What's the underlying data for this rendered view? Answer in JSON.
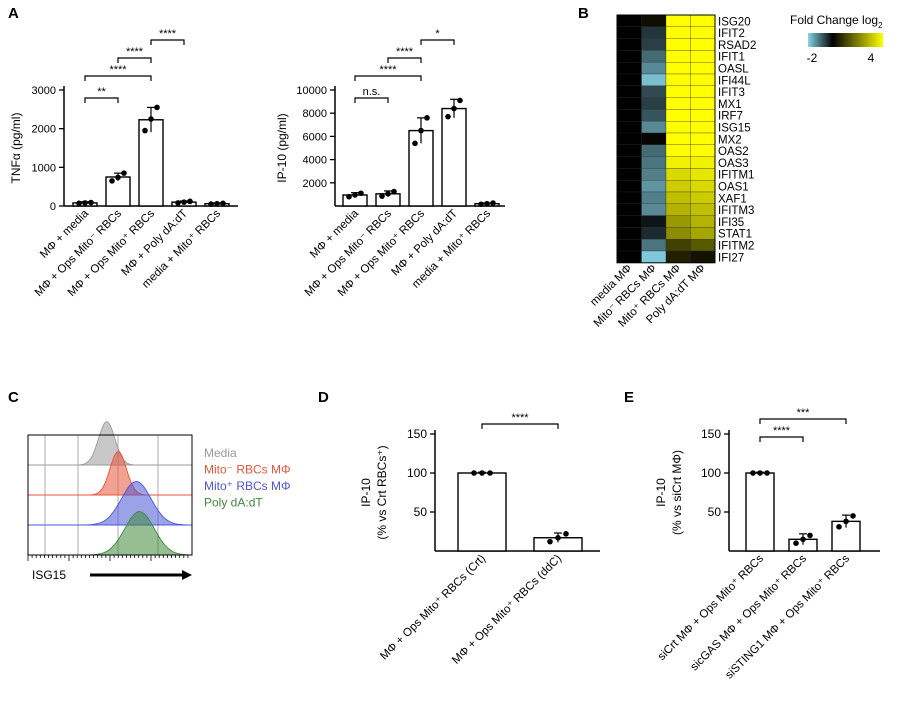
{
  "panel_labels": {
    "A": "A",
    "B": "B",
    "C": "C",
    "D": "D",
    "E": "E"
  },
  "colors": {
    "bar_fill": "#ffffff",
    "axis": "#000000",
    "heat_low": "#87d3e6",
    "heat_mid": "#000000",
    "heat_high": "#ffff00",
    "media": "#9a9a9a",
    "mito_neg": "#e8553a",
    "mito_pos": "#4b55d6",
    "poly": "#3e8a3a"
  },
  "chart_data": [
    {
      "id": "A1",
      "type": "bar",
      "ylabel": "TNFα (pg/ml)",
      "ylim": [
        0,
        3000
      ],
      "yticks": [
        "0",
        "1000",
        "2000",
        "3000"
      ],
      "ytick_values": [
        0,
        1000,
        2000,
        3000
      ],
      "categories": [
        "MΦ + media",
        "MΦ + Ops Mito⁻ RBCs",
        "MΦ + Ops Mito⁺ RBCs",
        "MΦ + Poly dA:dT",
        "media + Mito⁺ RBCs"
      ],
      "values": [
        80,
        750,
        2230,
        100,
        60
      ],
      "errors": [
        30,
        100,
        320,
        30,
        20
      ],
      "points": [
        [
          70,
          80,
          90
        ],
        [
          650,
          740,
          850
        ],
        [
          1950,
          2250,
          2550
        ],
        [
          80,
          100,
          120
        ],
        [
          50,
          60,
          70
        ]
      ],
      "significance": [
        {
          "from": 0,
          "to": 1,
          "label": "**"
        },
        {
          "from": 0,
          "to": 2,
          "label": "****"
        },
        {
          "from": 1,
          "to": 2,
          "label": "****"
        },
        {
          "from": 2,
          "to": 3,
          "label": "****"
        }
      ]
    },
    {
      "id": "A2",
      "type": "bar",
      "ylabel": "IP-10 (pg/ml)",
      "ylim": [
        0,
        10000
      ],
      "yticks": [
        "2000",
        "4000",
        "6000",
        "8000",
        "10000"
      ],
      "ytick_values": [
        2000,
        4000,
        6000,
        8000,
        10000
      ],
      "categories": [
        "MΦ + media",
        "MΦ + Ops Mito⁻ RBCs",
        "MΦ + Ops Mito⁺ RBCs",
        "MΦ + Poly dA:dT",
        "media + Mito⁺ RBCs"
      ],
      "values": [
        950,
        1050,
        6500,
        8400,
        200
      ],
      "errors": [
        200,
        250,
        1100,
        800,
        60
      ],
      "points": [
        [
          800,
          950,
          1100
        ],
        [
          850,
          1050,
          1250
        ],
        [
          5400,
          6500,
          7600
        ],
        [
          7700,
          8400,
          9100
        ],
        [
          150,
          200,
          250
        ]
      ],
      "significance": [
        {
          "from": 0,
          "to": 1,
          "label": "n.s."
        },
        {
          "from": 0,
          "to": 2,
          "label": "****"
        },
        {
          "from": 1,
          "to": 2,
          "label": "****"
        },
        {
          "from": 2,
          "to": 3,
          "label": "*"
        }
      ]
    },
    {
      "id": "B",
      "type": "heatmap",
      "title": "Fold Change log",
      "title_sub": "2",
      "scale_ticks": [
        "-2",
        "4"
      ],
      "columns": [
        "media MΦ",
        "Mito⁻ RBCs MΦ",
        "Mito⁺ RBCs MΦ",
        "Poly dA:dT MΦ"
      ],
      "rows": [
        "ISG20",
        "IFIT2",
        "RSAD2",
        "IFIT1",
        "OASL",
        "IFI44L",
        "IFIT3",
        "MX1",
        "IRF7",
        "ISG15",
        "MX2",
        "OAS2",
        "OAS3",
        "IFITM1",
        "OAS1",
        "XAF1",
        "IFITM3",
        "IFI35",
        "STAT1",
        "IFITM2",
        "IFI27"
      ],
      "values": [
        [
          0,
          0.2,
          4,
          4
        ],
        [
          0,
          -0.5,
          4,
          4
        ],
        [
          0,
          -0.6,
          4,
          4
        ],
        [
          0,
          -1.0,
          4,
          4
        ],
        [
          0,
          -1.3,
          4,
          4
        ],
        [
          0,
          -1.8,
          4,
          4
        ],
        [
          0,
          -0.7,
          4,
          4
        ],
        [
          0,
          -0.6,
          4,
          4
        ],
        [
          0,
          -0.8,
          4,
          4
        ],
        [
          0,
          -1.3,
          4,
          4
        ],
        [
          0,
          0.1,
          4,
          4
        ],
        [
          0,
          -1.0,
          4,
          4
        ],
        [
          0,
          -1.1,
          3.8,
          3.8
        ],
        [
          0,
          -1.2,
          3.4,
          3.6
        ],
        [
          0,
          -1.4,
          3.2,
          3.4
        ],
        [
          0,
          -1.2,
          3.0,
          3.2
        ],
        [
          0,
          -1.3,
          2.8,
          3.0
        ],
        [
          0,
          -0.2,
          2.4,
          2.8
        ],
        [
          0,
          -0.4,
          2.2,
          2.6
        ],
        [
          0,
          -1.1,
          1.0,
          1.4
        ],
        [
          0,
          -1.9,
          0.5,
          0.3
        ]
      ]
    },
    {
      "id": "C",
      "type": "histogram",
      "xlabel": "ISG15",
      "series": [
        {
          "name": "Media",
          "peak": 0.48,
          "width": 0.05
        },
        {
          "name": "Mito⁻ RBCs MΦ",
          "peak": 0.55,
          "width": 0.05
        },
        {
          "name": "Mito⁺ RBCs MΦ",
          "peak": 0.66,
          "width": 0.09
        },
        {
          "name": "Poly dA:dT",
          "peak": 0.68,
          "width": 0.09
        }
      ]
    },
    {
      "id": "D",
      "type": "bar",
      "ylabel": "IP-10",
      "ylabel2": "(% vs Crt RBCs⁺)",
      "ylim": [
        0,
        150
      ],
      "yticks": [
        "50",
        "100",
        "150"
      ],
      "ytick_values": [
        50,
        100,
        150
      ],
      "categories": [
        "MΦ + Ops Mito⁺ RBCs (Crt)",
        "MΦ + Ops Mito⁺ RBCs (ddC)"
      ],
      "values": [
        100,
        17
      ],
      "errors": [
        1,
        6
      ],
      "points": [
        [
          100,
          100,
          100
        ],
        [
          12,
          17,
          22
        ]
      ],
      "significance": [
        {
          "from": 0,
          "to": 1,
          "label": "****"
        }
      ]
    },
    {
      "id": "E",
      "type": "bar",
      "ylabel": "IP-10",
      "ylabel2": "(% vs siCrt MΦ)",
      "ylim": [
        0,
        150
      ],
      "yticks": [
        "50",
        "100",
        "150"
      ],
      "ytick_values": [
        50,
        100,
        150
      ],
      "categories": [
        "siCrt MΦ + Ops Mito⁺ RBCs",
        "sicGAS MΦ + Ops Mito⁺ RBCs",
        "siSTING1 MΦ + Ops Mito⁺ RBCs"
      ],
      "values": [
        100,
        15,
        38
      ],
      "errors": [
        1,
        7,
        8
      ],
      "points": [
        [
          100,
          100,
          100
        ],
        [
          10,
          15,
          20
        ],
        [
          31,
          38,
          45
        ]
      ],
      "significance": [
        {
          "from": 0,
          "to": 1,
          "label": "****"
        },
        {
          "from": 0,
          "to": 2,
          "label": "***"
        }
      ]
    }
  ]
}
